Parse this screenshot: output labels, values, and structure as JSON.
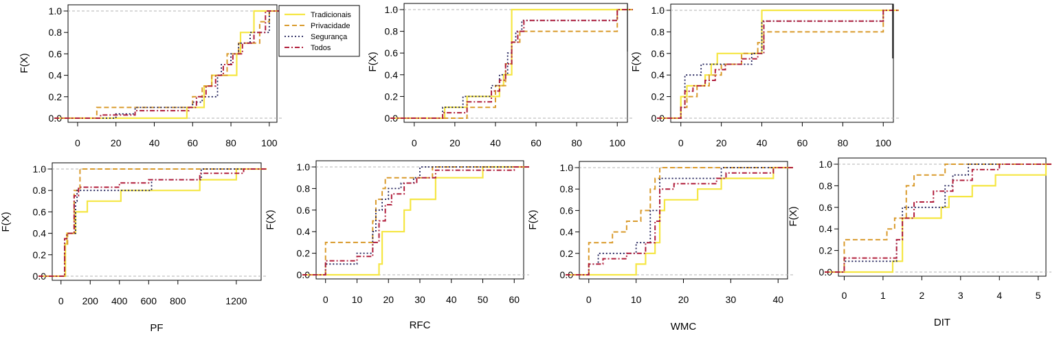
{
  "colors": {
    "Tradicionais": "#f5e642",
    "Privacidade": "#d99a2b",
    "Segurança": "#1a1a55",
    "Todos": "#b01c3a",
    "reference_line": "#b0b0b0",
    "frame": "#000000"
  },
  "legend": {
    "entries": [
      "Tradicionais",
      "Privacidade",
      "Segurança",
      "Todos"
    ],
    "styles": [
      "solid",
      "dashed",
      "dotted",
      "dashdot"
    ]
  },
  "chart_data": [
    {
      "type": "line",
      "subtype": "ecdf-step",
      "xlabel": "",
      "ylabel": "F(X)",
      "xlim": [
        -5,
        104
      ],
      "ylim": [
        0,
        1
      ],
      "xticks": [
        0,
        20,
        40,
        60,
        80,
        100
      ],
      "xtick_labels": [
        "0",
        "20",
        "40",
        "60",
        "80",
        "100"
      ],
      "yticks": [
        0,
        0.2,
        0.4,
        0.6,
        0.8,
        1
      ],
      "ytick_labels": [
        "0.0",
        "0.2",
        "0.4",
        "0.6",
        "0.8",
        "1.0"
      ],
      "series": [
        {
          "name": "Tradicionais",
          "x": [
            57,
            66,
            70,
            83,
            85,
            92,
            100
          ],
          "y": [
            0.1,
            0.3,
            0.4,
            0.6,
            0.8,
            1.0,
            1.0
          ]
        },
        {
          "name": "Privacidade",
          "x": [
            10,
            60,
            65,
            70,
            78,
            84,
            88,
            95,
            100
          ],
          "y": [
            0.1,
            0.2,
            0.3,
            0.4,
            0.6,
            0.7,
            0.7,
            0.9,
            1.0
          ]
        },
        {
          "name": "Segurança",
          "x": [
            20,
            30,
            60,
            65,
            73,
            75,
            80,
            84,
            90,
            100
          ],
          "y": [
            0.04,
            0.1,
            0.15,
            0.2,
            0.4,
            0.5,
            0.6,
            0.7,
            0.8,
            1.0
          ]
        },
        {
          "name": "Todos",
          "x": [
            12,
            30,
            58,
            62,
            67,
            72,
            76,
            81,
            86,
            92,
            98
          ],
          "y": [
            0.03,
            0.07,
            0.1,
            0.2,
            0.3,
            0.4,
            0.5,
            0.6,
            0.7,
            0.8,
            1.0
          ]
        }
      ]
    },
    {
      "type": "line",
      "subtype": "ecdf-step",
      "xlabel": "",
      "ylabel": "F(X)",
      "xlim": [
        -5,
        105
      ],
      "ylim": [
        0,
        1
      ],
      "xticks": [
        0,
        20,
        40,
        60,
        80,
        100
      ],
      "xtick_labels": [
        "0",
        "20",
        "40",
        "60",
        "80",
        "100"
      ],
      "yticks": [
        0,
        0.2,
        0.4,
        0.6,
        0.8,
        1
      ],
      "ytick_labels": [
        "0.0",
        "0.2",
        "0.4",
        "0.6",
        "0.8",
        "1.0"
      ],
      "series": [
        {
          "name": "Tradicionais",
          "x": [
            15,
            26,
            42,
            44,
            48,
            100
          ],
          "y": [
            0.1,
            0.2,
            0.3,
            0.4,
            1.0,
            1.0
          ]
        },
        {
          "name": "Privacidade",
          "x": [
            26,
            40,
            45,
            48,
            52,
            100
          ],
          "y": [
            0.1,
            0.3,
            0.5,
            0.7,
            0.8,
            1.0
          ]
        },
        {
          "name": "Segurança",
          "x": [
            14,
            24,
            38,
            42,
            46,
            48,
            50,
            53,
            100
          ],
          "y": [
            0.1,
            0.2,
            0.3,
            0.4,
            0.6,
            0.7,
            0.8,
            0.9,
            1.0
          ]
        },
        {
          "name": "Todos",
          "x": [
            14,
            26,
            38,
            42,
            45,
            48,
            51,
            54,
            100
          ],
          "y": [
            0.05,
            0.15,
            0.25,
            0.35,
            0.5,
            0.7,
            0.8,
            0.9,
            1.0
          ]
        }
      ]
    },
    {
      "type": "line",
      "subtype": "ecdf-step",
      "xlabel": "",
      "ylabel": "F(X)",
      "xlim": [
        -5,
        105
      ],
      "ylim": [
        0,
        1
      ],
      "xticks": [
        0,
        20,
        40,
        60,
        80,
        100
      ],
      "xtick_labels": [
        "0",
        "20",
        "40",
        "60",
        "80",
        "100"
      ],
      "yticks": [
        0,
        0.2,
        0.4,
        0.6,
        0.8,
        1
      ],
      "ytick_labels": [
        "0.0",
        "0.2",
        "0.4",
        "0.6",
        "0.8",
        "1.0"
      ],
      "series": [
        {
          "name": "Tradicionais",
          "x": [
            0,
            3,
            12,
            15,
            18,
            40,
            100
          ],
          "y": [
            0.2,
            0.3,
            0.4,
            0.5,
            0.6,
            1.0,
            1.0
          ]
        },
        {
          "name": "Privacidade",
          "x": [
            0,
            3,
            8,
            14,
            20,
            30,
            38,
            41,
            100
          ],
          "y": [
            0.1,
            0.2,
            0.3,
            0.4,
            0.5,
            0.6,
            0.7,
            0.8,
            1.0
          ]
        },
        {
          "name": "Segurança",
          "x": [
            0,
            2,
            10,
            18,
            26,
            35,
            40,
            100
          ],
          "y": [
            0.1,
            0.4,
            0.5,
            0.5,
            0.5,
            0.6,
            0.9,
            1.0
          ]
        },
        {
          "name": "Todos",
          "x": [
            0,
            2,
            6,
            12,
            17,
            22,
            30,
            38,
            41,
            100
          ],
          "y": [
            0.1,
            0.25,
            0.3,
            0.35,
            0.45,
            0.5,
            0.55,
            0.6,
            0.9,
            1.0
          ]
        }
      ]
    },
    {
      "type": "line",
      "subtype": "ecdf-step",
      "xlabel": "PF",
      "ylabel": "F(X)",
      "xlim": [
        -60,
        1370
      ],
      "ylim": [
        0,
        1
      ],
      "xticks": [
        0,
        200,
        400,
        600,
        800,
        1200
      ],
      "xtick_labels": [
        "0",
        "200",
        "400",
        "600",
        "800",
        "1200"
      ],
      "yticks": [
        0,
        0.2,
        0.4,
        0.6,
        0.8,
        1
      ],
      "ytick_labels": [
        "0.0",
        "0.2",
        "0.4",
        "0.6",
        "0.8",
        "1.0"
      ],
      "series": [
        {
          "name": "Tradicionais",
          "x": [
            30,
            40,
            100,
            180,
            410,
            950,
            1200,
            1300
          ],
          "y": [
            0.3,
            0.4,
            0.6,
            0.7,
            0.8,
            0.9,
            1.0,
            1.0
          ]
        },
        {
          "name": "Privacidade",
          "x": [
            25,
            45,
            90,
            130,
            1300
          ],
          "y": [
            0.3,
            0.4,
            0.8,
            1.0,
            1.0
          ]
        },
        {
          "name": "Segurança",
          "x": [
            25,
            40,
            100,
            110,
            620,
            960,
            1300
          ],
          "y": [
            0.35,
            0.4,
            0.7,
            0.8,
            0.9,
            1.0,
            1.0
          ]
        },
        {
          "name": "Todos",
          "x": [
            25,
            40,
            90,
            120,
            400,
            600,
            950,
            1250,
            1300
          ],
          "y": [
            0.35,
            0.4,
            0.75,
            0.83,
            0.87,
            0.9,
            0.96,
            1.0,
            1.0
          ]
        }
      ]
    },
    {
      "type": "line",
      "subtype": "ecdf-step",
      "xlabel": "RFC",
      "ylabel": "F(X)",
      "xlim": [
        -3,
        63
      ],
      "ylim": [
        0,
        1
      ],
      "xticks": [
        0,
        10,
        20,
        30,
        40,
        50,
        60
      ],
      "xtick_labels": [
        "0",
        "10",
        "20",
        "30",
        "40",
        "50",
        "60"
      ],
      "yticks": [
        0,
        0.2,
        0.4,
        0.6,
        0.8,
        1
      ],
      "ytick_labels": [
        "0.0",
        "0.2",
        "0.4",
        "0.6",
        "0.8",
        "1.0"
      ],
      "series": [
        {
          "name": "Tradicionais",
          "x": [
            17,
            18,
            25,
            27,
            35,
            50,
            60
          ],
          "y": [
            0.1,
            0.4,
            0.6,
            0.7,
            0.9,
            1.0,
            1.0
          ]
        },
        {
          "name": "Privacidade",
          "x": [
            0,
            15,
            16,
            18,
            19,
            24,
            34,
            60
          ],
          "y": [
            0.3,
            0.5,
            0.7,
            0.8,
            0.9,
            0.9,
            1.0,
            1.0
          ]
        },
        {
          "name": "Segurança",
          "x": [
            0,
            10,
            15,
            16,
            18,
            20,
            24,
            28,
            30,
            60
          ],
          "y": [
            0.1,
            0.2,
            0.4,
            0.6,
            0.7,
            0.8,
            0.85,
            0.9,
            1.0,
            1.0
          ]
        },
        {
          "name": "Todos",
          "x": [
            0,
            10,
            15,
            17,
            19,
            21,
            25,
            29,
            35,
            60
          ],
          "y": [
            0.13,
            0.17,
            0.3,
            0.5,
            0.65,
            0.75,
            0.85,
            0.9,
            0.97,
            1.0
          ]
        }
      ]
    },
    {
      "type": "line",
      "subtype": "ecdf-step",
      "xlabel": "WMC",
      "ylabel": "F(X)",
      "xlim": [
        -2,
        42
      ],
      "ylim": [
        0,
        1
      ],
      "xticks": [
        0,
        10,
        20,
        30,
        40
      ],
      "xtick_labels": [
        "0",
        "10",
        "20",
        "30",
        "40"
      ],
      "yticks": [
        0,
        0.2,
        0.4,
        0.6,
        0.8,
        1
      ],
      "ytick_labels": [
        "0.0",
        "0.2",
        "0.4",
        "0.6",
        "0.8",
        "1.0"
      ],
      "series": [
        {
          "name": "Tradicionais",
          "x": [
            10,
            12,
            14,
            15,
            16,
            23,
            28,
            39,
            41
          ],
          "y": [
            0.1,
            0.2,
            0.3,
            0.6,
            0.7,
            0.8,
            0.9,
            1.0,
            1.0
          ]
        },
        {
          "name": "Privacidade",
          "x": [
            0,
            5,
            8,
            11,
            13,
            14,
            15,
            41
          ],
          "y": [
            0.3,
            0.4,
            0.5,
            0.6,
            0.8,
            0.9,
            1.0,
            1.0
          ]
        },
        {
          "name": "Segurança",
          "x": [
            0,
            2,
            10,
            13,
            15,
            26,
            28,
            41
          ],
          "y": [
            0.1,
            0.2,
            0.3,
            0.6,
            0.9,
            0.9,
            1.0,
            1.0
          ]
        },
        {
          "name": "Todos",
          "x": [
            0,
            3,
            8,
            12,
            14,
            15,
            18,
            27,
            29,
            39,
            41
          ],
          "y": [
            0.1,
            0.15,
            0.2,
            0.3,
            0.5,
            0.8,
            0.85,
            0.9,
            0.95,
            1.0,
            1.0
          ]
        }
      ]
    },
    {
      "type": "line",
      "subtype": "ecdf-step",
      "xlabel": "DIT",
      "ylabel": "F(X)",
      "xlim": [
        -0.15,
        5.2
      ],
      "ylim": [
        0,
        1
      ],
      "xticks": [
        0,
        1,
        2,
        3,
        4,
        5
      ],
      "xtick_labels": [
        "0",
        "1",
        "2",
        "3",
        "4",
        "5"
      ],
      "yticks": [
        0,
        0.2,
        0.4,
        0.6,
        0.8,
        1
      ],
      "ytick_labels": [
        "0.0",
        "0.2",
        "0.4",
        "0.6",
        "0.8",
        "1.0"
      ],
      "series": [
        {
          "name": "Tradicionais",
          "x": [
            1.25,
            1.5,
            2.5,
            2.7,
            3.3,
            3.9,
            5.2
          ],
          "y": [
            0.1,
            0.5,
            0.6,
            0.7,
            0.8,
            0.9,
            1.0
          ]
        },
        {
          "name": "Privacidade",
          "x": [
            0,
            1.1,
            1.3,
            1.6,
            1.8,
            2.6,
            5.2
          ],
          "y": [
            0.3,
            0.4,
            0.5,
            0.8,
            0.9,
            1.0,
            1.0
          ]
        },
        {
          "name": "Segurança",
          "x": [
            0,
            1.35,
            1.5,
            2.6,
            2.8,
            3.2,
            5.2
          ],
          "y": [
            0.1,
            0.3,
            0.6,
            0.8,
            0.9,
            1.0,
            1.0
          ]
        },
        {
          "name": "Todos",
          "x": [
            0,
            1.35,
            1.5,
            1.8,
            2.3,
            2.8,
            3.3,
            4.0,
            5.2
          ],
          "y": [
            0.13,
            0.3,
            0.5,
            0.65,
            0.75,
            0.85,
            0.95,
            1.0,
            1.0
          ]
        }
      ]
    }
  ]
}
